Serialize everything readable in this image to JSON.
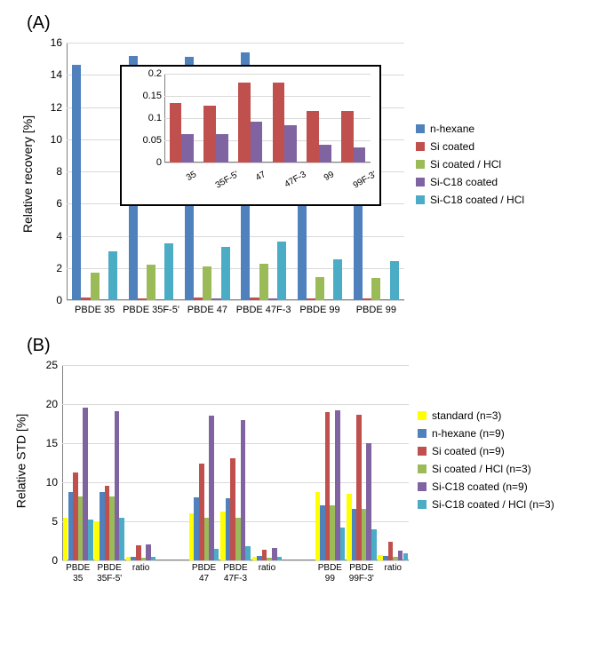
{
  "panels": {
    "A": {
      "label": "(A)",
      "ylabel": "Relative recovery [%]"
    },
    "B": {
      "label": "(B)",
      "ylabel": "Relative STD  [%]"
    }
  },
  "chartA": {
    "type": "bar",
    "ylim": [
      0,
      16
    ],
    "ytick_step": 2,
    "yticks": [
      "0",
      "2",
      "4",
      "6",
      "8",
      "10",
      "12",
      "14",
      "16"
    ],
    "categories": [
      "PBDE 35",
      "PBDE 35F-5'",
      "PBDE 47",
      "PBDE 47F-3",
      "PBDE 99",
      "PBDE 99"
    ],
    "series": [
      {
        "name": "n-hexane",
        "color": "#4f81bd",
        "values": [
          14.6,
          15.2,
          15.1,
          15.4,
          14.3,
          14.4
        ]
      },
      {
        "name": "Si coated",
        "color": "#c0504d",
        "values": [
          0.14,
          0.13,
          0.18,
          0.18,
          0.12,
          0.12
        ]
      },
      {
        "name": "Si coated / HCl",
        "color": "#9bbb59",
        "values": [
          1.7,
          2.2,
          2.1,
          2.25,
          1.45,
          1.4
        ]
      },
      {
        "name": "Si-C18 coated",
        "color": "#8064a2",
        "values": [
          0.065,
          0.065,
          0.095,
          0.085,
          0.04,
          0.035
        ]
      },
      {
        "name": "Si-C18 coated / HCl",
        "color": "#4bacc6",
        "values": [
          3.05,
          3.55,
          3.3,
          3.65,
          2.55,
          2.45
        ]
      }
    ],
    "legend_labels": [
      "n-hexane",
      "Si coated",
      "Si coated / HCl",
      "Si-C18 coated",
      "Si-C18 coated / HCl"
    ],
    "legend_colors": [
      "#4f81bd",
      "#c0504d",
      "#9bbb59",
      "#8064a2",
      "#4bacc6"
    ],
    "grid_color": "#d9d9d9",
    "background_color": "#ffffff"
  },
  "insetA": {
    "type": "bar",
    "ylim": [
      0,
      0.2
    ],
    "yticks": [
      "0",
      "0.05",
      "0.1",
      "0.15",
      "0.2"
    ],
    "categories": [
      "35",
      "35F-5'",
      "47",
      "47F-3",
      "99",
      "99F-3'"
    ],
    "series": [
      {
        "name": "Si coated",
        "color": "#c0504d",
        "values": [
          0.135,
          0.128,
          0.18,
          0.18,
          0.117,
          0.117
        ]
      },
      {
        "name": "Si-C18 coated",
        "color": "#8064a2",
        "values": [
          0.065,
          0.065,
          0.093,
          0.085,
          0.04,
          0.035
        ]
      }
    ]
  },
  "chartB": {
    "type": "bar",
    "ylim": [
      0,
      25
    ],
    "ytick_step": 5,
    "yticks": [
      "0",
      "5",
      "10",
      "15",
      "20",
      "25"
    ],
    "categories": [
      "PBDE\n35",
      "PBDE\n35F-5'",
      "ratio",
      "",
      "PBDE\n47",
      "PBDE\n47F-3",
      "ratio",
      "",
      "PBDE\n99",
      "PBDE\n99F-3'",
      "ratio"
    ],
    "series_colors": [
      "#ffff00",
      "#4f81bd",
      "#c0504d",
      "#9bbb59",
      "#8064a2",
      "#4bacc6"
    ],
    "legend_labels": [
      "standard (n=3)",
      "n-hexane (n=9)",
      "Si coated (n=9)",
      "Si coated / HCl (n=3)",
      "Si-C18 coated (n=9)",
      "Si-C18 coated / HCl (n=3)"
    ],
    "legend_colors": [
      "#ffff00",
      "#4f81bd",
      "#c0504d",
      "#9bbb59",
      "#8064a2",
      "#4bacc6"
    ],
    "group1": {
      "cats": [
        "PBDE\n35",
        "PBDE\n35F-5'",
        "ratio"
      ],
      "data": [
        [
          5.5,
          8.8,
          11.2,
          8.2,
          19.5,
          5.2
        ],
        [
          5.0,
          8.8,
          9.6,
          8.2,
          19.1,
          5.5
        ],
        [
          0.4,
          0.5,
          1.9,
          0.3,
          2.1,
          0.5
        ]
      ]
    },
    "group2": {
      "cats": [
        "PBDE\n47",
        "PBDE\n47F-3",
        "ratio"
      ],
      "data": [
        [
          6.0,
          8.1,
          12.4,
          5.5,
          18.5,
          1.5
        ],
        [
          6.2,
          8.0,
          13.1,
          5.5,
          17.9,
          1.8
        ],
        [
          0.5,
          0.6,
          1.4,
          0.3,
          1.6,
          0.4
        ]
      ]
    },
    "group3": {
      "cats": [
        "PBDE\n99",
        "PBDE\n99F-3'",
        "ratio"
      ],
      "data": [
        [
          8.7,
          7.0,
          19.0,
          7.0,
          19.2,
          4.2
        ],
        [
          8.5,
          6.6,
          18.6,
          6.6,
          15.0,
          4.0
        ],
        [
          0.7,
          0.6,
          2.4,
          0.5,
          1.2,
          0.9
        ]
      ]
    },
    "grid_color": "#d9d9d9",
    "background_color": "#ffffff"
  }
}
